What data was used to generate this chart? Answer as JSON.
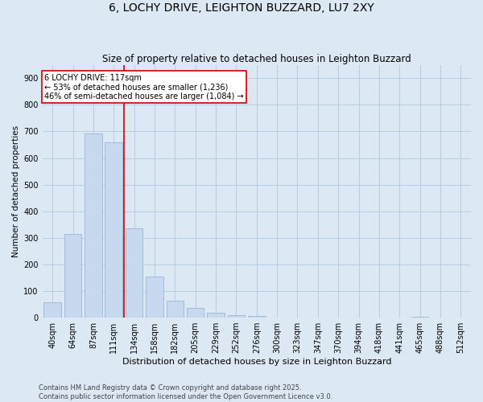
{
  "title": "6, LOCHY DRIVE, LEIGHTON BUZZARD, LU7 2XY",
  "subtitle": "Size of property relative to detached houses in Leighton Buzzard",
  "xlabel": "Distribution of detached houses by size in Leighton Buzzard",
  "ylabel": "Number of detached properties",
  "bins": [
    "40sqm",
    "64sqm",
    "87sqm",
    "111sqm",
    "134sqm",
    "158sqm",
    "182sqm",
    "205sqm",
    "229sqm",
    "252sqm",
    "276sqm",
    "300sqm",
    "323sqm",
    "347sqm",
    "370sqm",
    "394sqm",
    "418sqm",
    "441sqm",
    "465sqm",
    "488sqm",
    "512sqm"
  ],
  "values": [
    57,
    313,
    693,
    660,
    335,
    155,
    65,
    35,
    18,
    10,
    5,
    0,
    0,
    0,
    0,
    0,
    0,
    0,
    3,
    0,
    0
  ],
  "bar_color": "#c8d8ee",
  "bar_edgecolor": "#a0bcd8",
  "grid_color": "#b8cce0",
  "background_color": "#dce8f4",
  "vline_x": 3.5,
  "vline_color": "#cc0000",
  "annotation_text": "6 LOCHY DRIVE: 117sqm\n← 53% of detached houses are smaller (1,236)\n46% of semi-detached houses are larger (1,084) →",
  "annotation_box_facecolor": "#ffffff",
  "annotation_box_edgecolor": "#cc0000",
  "footer_text": "Contains HM Land Registry data © Crown copyright and database right 2025.\nContains public sector information licensed under the Open Government Licence v3.0.",
  "ylim": [
    0,
    950
  ],
  "yticks": [
    0,
    100,
    200,
    300,
    400,
    500,
    600,
    700,
    800,
    900
  ],
  "title_fontsize": 10,
  "subtitle_fontsize": 8.5,
  "xlabel_fontsize": 8,
  "ylabel_fontsize": 7.5,
  "tick_fontsize": 7,
  "annotation_fontsize": 7,
  "footer_fontsize": 6
}
